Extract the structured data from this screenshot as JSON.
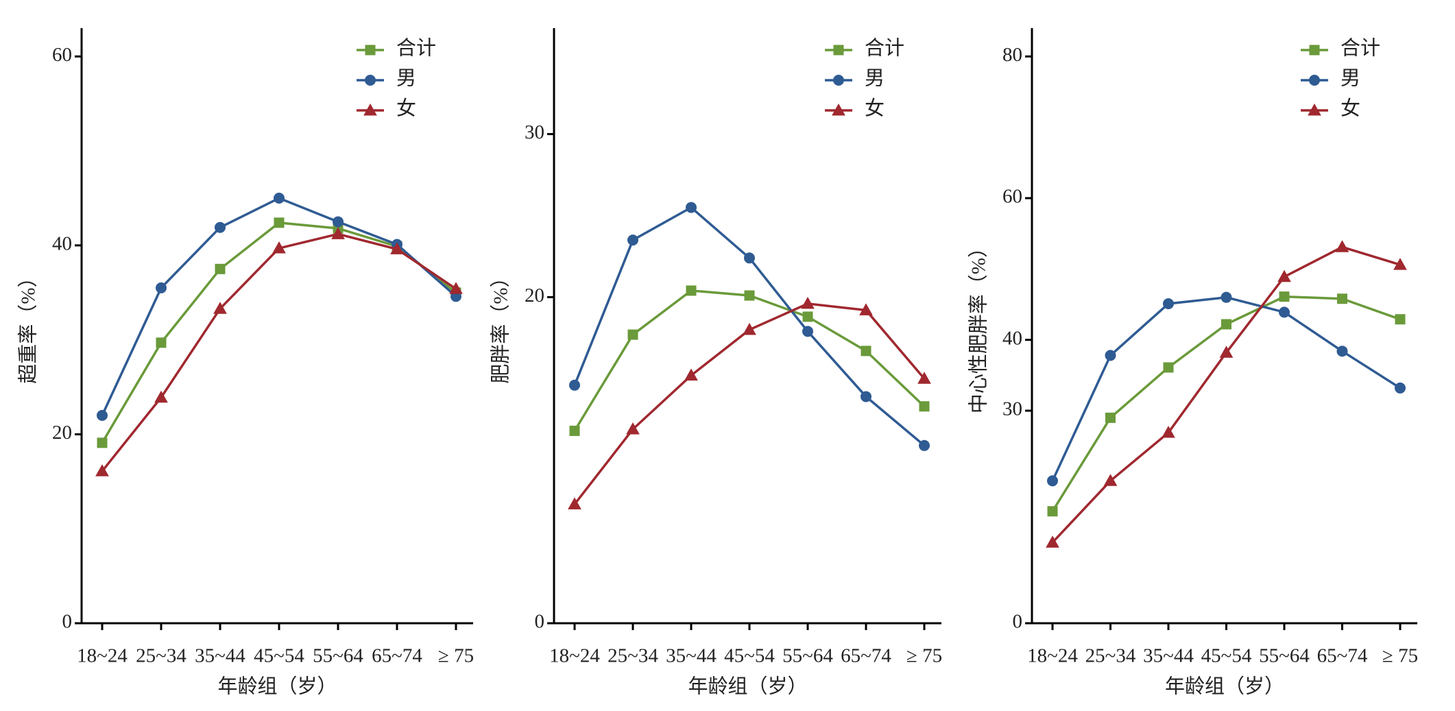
{
  "chart_data": [
    {
      "type": "line",
      "ylabel": "超重率（%）",
      "xlabel": "年龄组（岁）",
      "categories": [
        "18~24",
        "25~34",
        "35~44",
        "45~54",
        "55~64",
        "65~74",
        "≥ 75"
      ],
      "ylim": [
        0,
        63
      ],
      "yticks": [
        0,
        20,
        40,
        60
      ],
      "legend": "upper right",
      "series": [
        {
          "name": "合计",
          "color": "#6a9a3a",
          "marker": "square",
          "values": [
            19.1,
            29.7,
            37.5,
            42.4,
            41.8,
            39.9,
            35.0
          ]
        },
        {
          "name": "男",
          "color": "#2f5b93",
          "marker": "circle",
          "values": [
            22.0,
            35.5,
            41.9,
            45.0,
            42.5,
            40.1,
            34.6
          ]
        },
        {
          "name": "女",
          "color": "#a0282f",
          "marker": "triangle",
          "values": [
            16.1,
            23.9,
            33.3,
            39.7,
            41.2,
            39.6,
            35.4
          ]
        }
      ]
    },
    {
      "type": "line",
      "ylabel": "肥胖率（%）",
      "xlabel": "年龄组（岁）",
      "categories": [
        "18~24",
        "25~34",
        "35~44",
        "45~54",
        "55~64",
        "65~74",
        "≥ 75"
      ],
      "ylim": [
        0,
        36.5
      ],
      "yticks": [
        0,
        20,
        30
      ],
      "legend": "upper right",
      "series": [
        {
          "name": "合计",
          "color": "#6a9a3a",
          "marker": "square",
          "values": [
            11.8,
            17.7,
            20.4,
            20.1,
            18.8,
            16.7,
            13.3
          ]
        },
        {
          "name": "男",
          "color": "#2f5b93",
          "marker": "circle",
          "values": [
            14.6,
            23.5,
            25.5,
            22.4,
            17.9,
            13.9,
            10.9
          ]
        },
        {
          "name": "女",
          "color": "#a0282f",
          "marker": "triangle",
          "values": [
            7.3,
            11.9,
            15.2,
            18.0,
            19.6,
            19.2,
            15.0
          ]
        }
      ]
    },
    {
      "type": "line",
      "ylabel": "中心性肥胖率（%）",
      "xlabel": "年龄组（岁）",
      "categories": [
        "18~24",
        "25~34",
        "35~44",
        "45~54",
        "55~64",
        "65~74",
        "≥ 75"
      ],
      "ylim": [
        0,
        84
      ],
      "yticks": [
        0,
        30,
        40,
        60,
        80
      ],
      "legend": "upper right",
      "series": [
        {
          "name": "合计",
          "color": "#6a9a3a",
          "marker": "square",
          "values": [
            15.8,
            29.0,
            36.1,
            42.2,
            46.1,
            45.8,
            42.9
          ]
        },
        {
          "name": "男",
          "color": "#2f5b93",
          "marker": "circle",
          "values": [
            20.1,
            37.8,
            45.1,
            46.0,
            43.9,
            38.4,
            33.2
          ]
        },
        {
          "name": "女",
          "color": "#a0282f",
          "marker": "triangle",
          "values": [
            11.4,
            20.1,
            26.9,
            38.2,
            48.9,
            53.1,
            50.6
          ]
        }
      ]
    }
  ]
}
